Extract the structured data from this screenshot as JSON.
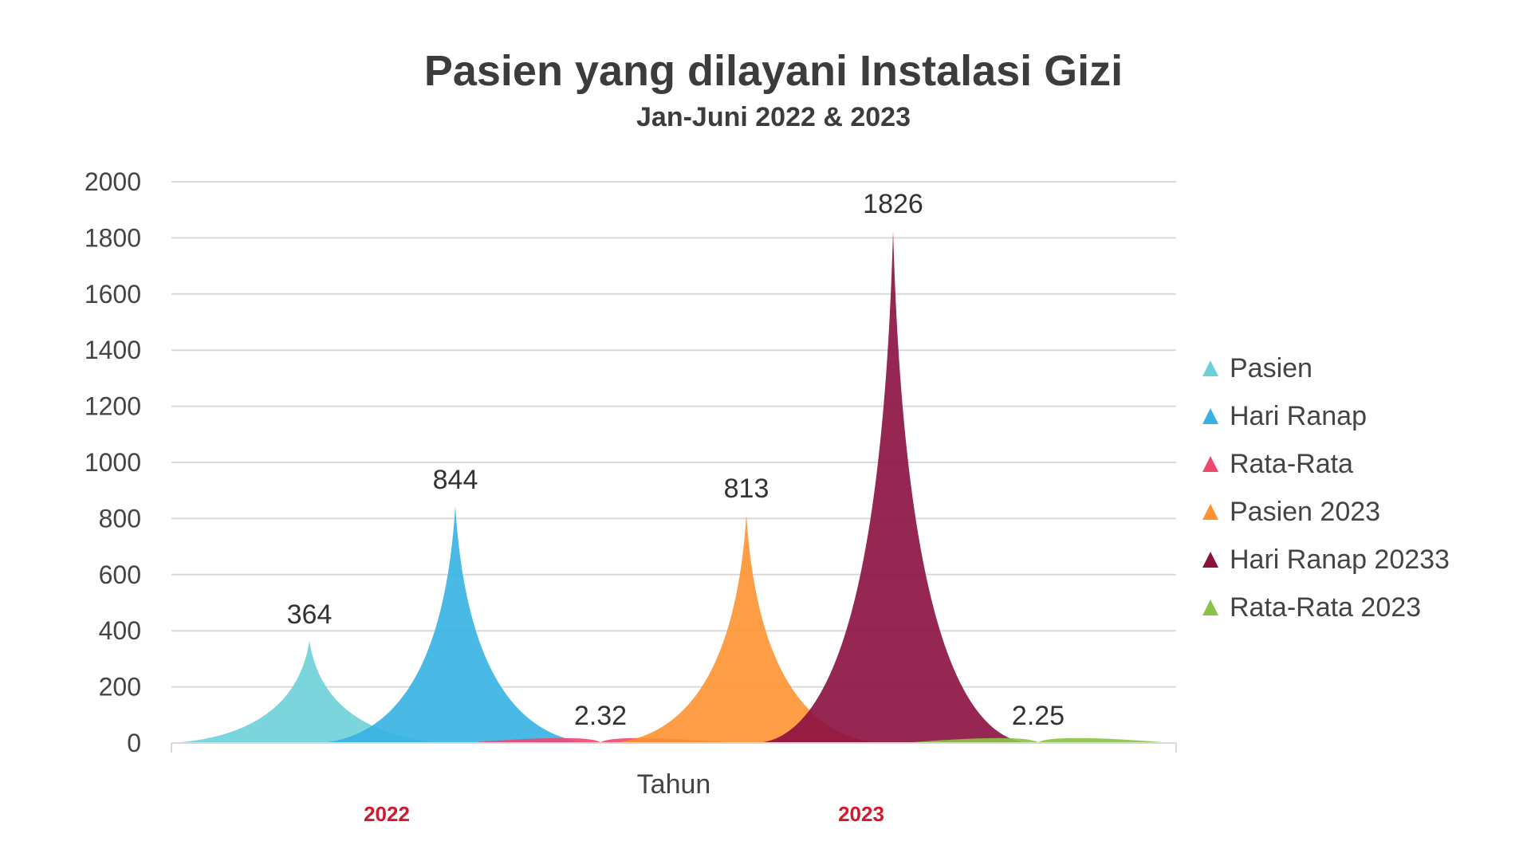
{
  "chart_data": {
    "type": "area",
    "title": "Pasien yang dilayani Instalasi Gizi",
    "subtitle": "Jan-Juni 2022 & 2023",
    "xlabel": "Tahun",
    "ylabel": "",
    "ylim": [
      0,
      2000
    ],
    "yticks": [
      "0",
      "200",
      "400",
      "600",
      "800",
      "1000",
      "1200",
      "1400",
      "1600",
      "1800",
      "2000"
    ],
    "categories": [
      "2022",
      "2023"
    ],
    "grid": true,
    "legend_position": "right",
    "series": [
      {
        "name": "Pasien",
        "value": 364,
        "label": "364",
        "color": "#6dd0d8",
        "show_label": true
      },
      {
        "name": "Hari Ranap",
        "value": 844,
        "label": "844",
        "color": "#35b1e3",
        "show_label": true
      },
      {
        "name": "Rata-Rata",
        "value": 2.32,
        "label": "2.32",
        "color": "#ef476f",
        "show_label": true
      },
      {
        "name": "Pasien 2023",
        "value": 813,
        "label": "813",
        "color": "#fd9231",
        "show_label": true
      },
      {
        "name": "Hari Ranap 20233",
        "value": 1826,
        "label": "1826",
        "color": "#8b1040",
        "show_label": true
      },
      {
        "name": "Rata-Rata 2023",
        "value": 2.25,
        "label": "2.25",
        "color": "#8bc34a",
        "show_label": true
      }
    ]
  }
}
